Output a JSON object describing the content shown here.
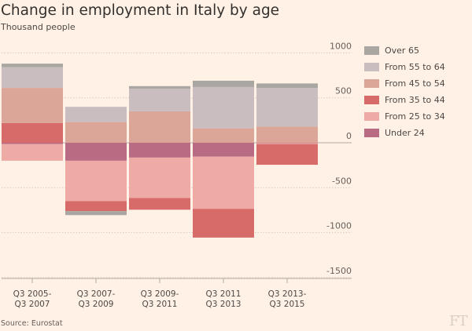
{
  "title": "Change in employment in Italy by age",
  "subtitle": "Thousand people",
  "source": "Source: Eurostat",
  "logo": "FT",
  "chart_data": {
    "type": "bar",
    "stacked": true,
    "title": "Change in employment in Italy by age",
    "ylabel": "Thousand people",
    "ylim": [
      -1500,
      1000
    ],
    "yticks": [
      1000,
      500,
      0,
      -500,
      -1000,
      -1500
    ],
    "ytick_labels": [
      "1000",
      "500",
      "0",
      "-500",
      "-1000",
      "-1500"
    ],
    "categories": [
      [
        "Q3 2005-",
        "Q3 2007"
      ],
      [
        "Q3 2007-",
        "Q3 2009"
      ],
      [
        "Q3 2009-",
        "Q3 2011"
      ],
      [
        "Q3 2011",
        "Q3 2013"
      ],
      [
        "Q3 2013-",
        "Q3 2015"
      ]
    ],
    "series": [
      {
        "name": "Under 24",
        "color": "#b86b82",
        "values": [
          -15,
          -200,
          -165,
          -155,
          -5
        ]
      },
      {
        "name": "From 25 to 34",
        "color": "#eeaba6",
        "values": [
          -185,
          -450,
          -450,
          -580,
          -10
        ]
      },
      {
        "name": "From 35 to 44",
        "color": "#d76b69",
        "values": [
          220,
          -110,
          -130,
          -320,
          -230
        ]
      },
      {
        "name": "From 45 to 54",
        "color": "#dba597",
        "values": [
          390,
          230,
          350,
          160,
          180
        ]
      },
      {
        "name": "From 55 to 64",
        "color": "#c9bdbf",
        "values": [
          230,
          170,
          250,
          460,
          430
        ]
      },
      {
        "name": "Over 65",
        "color": "#aaa7a3",
        "values": [
          40,
          -45,
          30,
          70,
          50
        ]
      }
    ],
    "legend": {
      "placement": "right",
      "order": [
        "Over 65",
        "From 55 to 64",
        "From 45 to 54",
        "From 35 to 44",
        "From 25 to 34",
        "Under 24"
      ]
    },
    "grid": true
  }
}
